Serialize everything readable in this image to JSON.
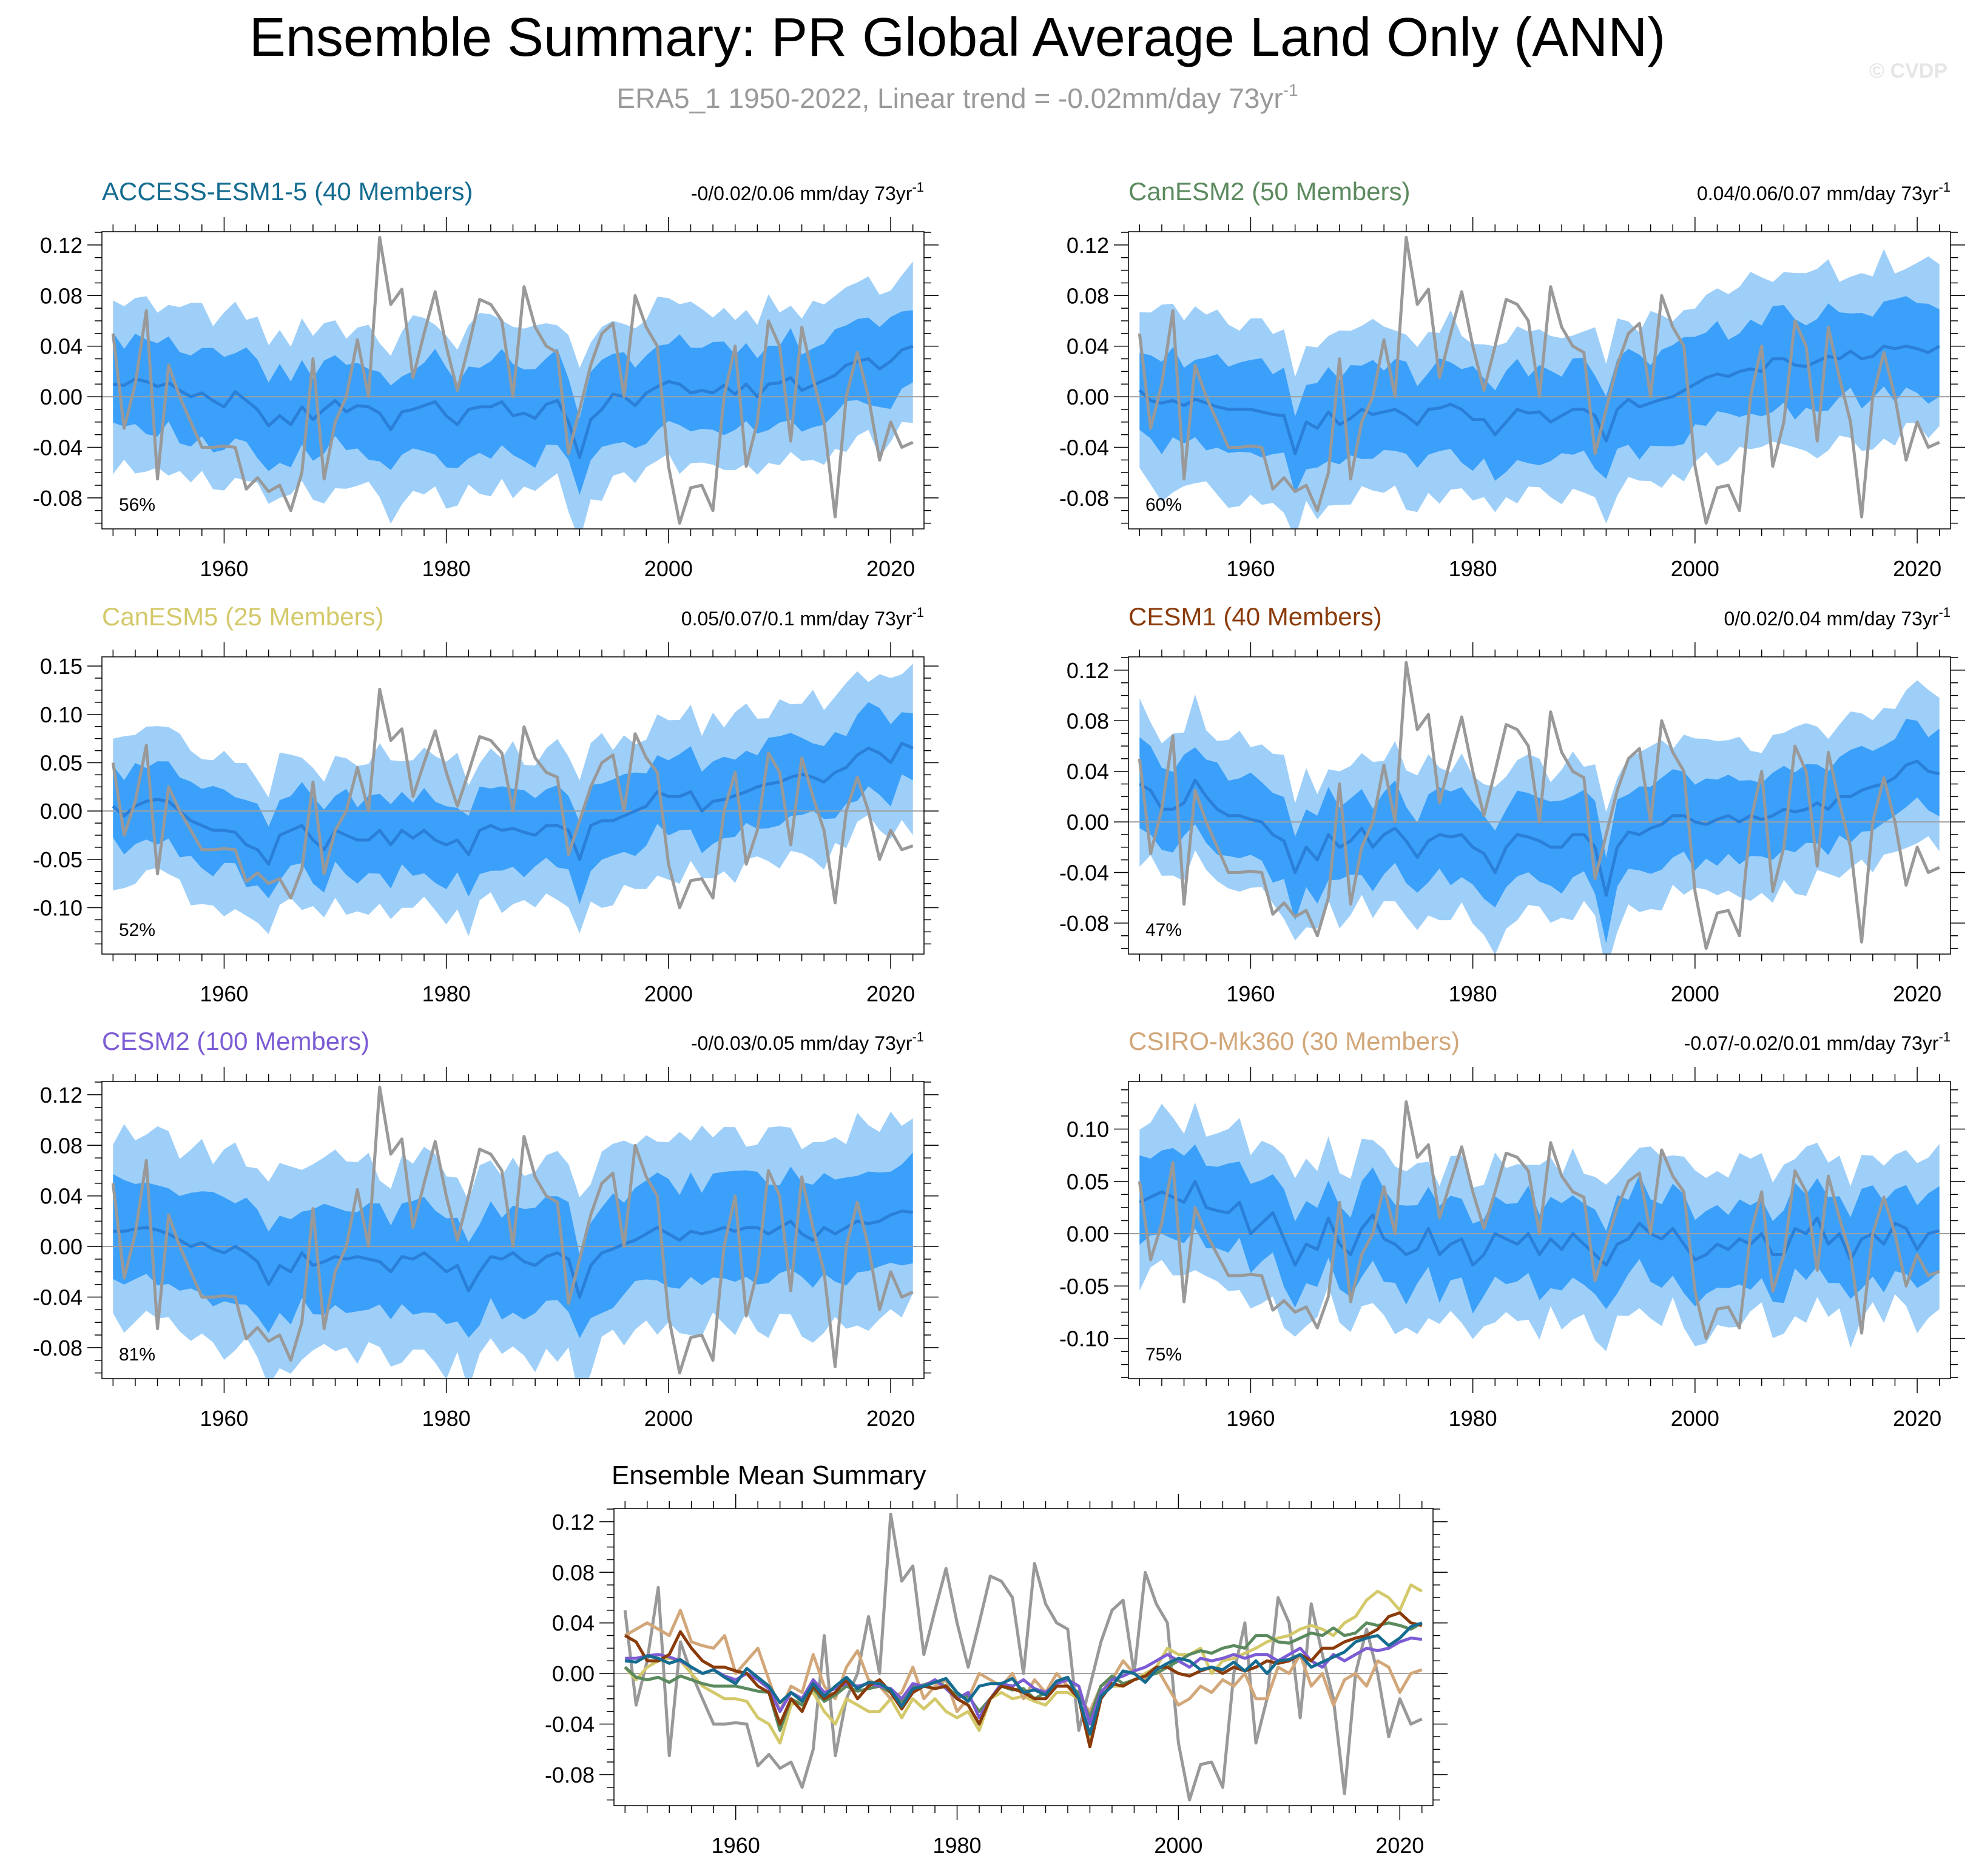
{
  "page": {
    "title": "Ensemble Summary: PR Global Average Land Only (ANN)",
    "subtitle_prefix": "ERA5_1 1950-2022, Linear trend = -0.02mm/day 73yr",
    "subtitle_sup": "-1",
    "watermark": "© CVDP"
  },
  "colors": {
    "obs": "#999999",
    "outer_band": "#9ecff9",
    "inner_band": "#3ba0f9",
    "ens_mean": "#2a7fd8",
    "zero_line": "#a0a0a0"
  },
  "x_ticks": [
    1960,
    1980,
    2000,
    2020
  ],
  "observations": {
    "name": "ERA5_1",
    "years": [
      1950,
      1951,
      1952,
      1953,
      1954,
      1955,
      1956,
      1957,
      1958,
      1959,
      1960,
      1961,
      1962,
      1963,
      1964,
      1965,
      1966,
      1967,
      1968,
      1969,
      1970,
      1971,
      1972,
      1973,
      1974,
      1975,
      1976,
      1977,
      1978,
      1979,
      1980,
      1981,
      1982,
      1983,
      1984,
      1985,
      1986,
      1987,
      1988,
      1989,
      1990,
      1991,
      1992,
      1993,
      1994,
      1995,
      1996,
      1997,
      1998,
      1999,
      2000,
      2001,
      2002,
      2003,
      2004,
      2005,
      2006,
      2007,
      2008,
      2009,
      2010,
      2011,
      2012,
      2013,
      2014,
      2015,
      2016,
      2017,
      2018,
      2019,
      2020,
      2021,
      2022
    ],
    "values": [
      0.05,
      -0.025,
      0.01,
      0.068,
      -0.065,
      0.025,
      0.0,
      -0.02,
      -0.04,
      -0.04,
      -0.039,
      -0.04,
      -0.073,
      -0.064,
      -0.075,
      -0.07,
      -0.09,
      -0.06,
      0.03,
      -0.065,
      -0.02,
      0.0,
      0.045,
      0.0,
      0.126,
      0.073,
      0.085,
      0.015,
      0.05,
      0.083,
      0.04,
      0.005,
      0.04,
      0.077,
      0.073,
      0.06,
      0.0,
      0.087,
      0.055,
      0.04,
      0.035,
      -0.045,
      -0.01,
      0.025,
      0.05,
      0.058,
      0.0,
      0.08,
      0.055,
      0.04,
      -0.055,
      -0.1,
      -0.072,
      -0.07,
      -0.09,
      0.0,
      0.04,
      -0.055,
      -0.02,
      0.06,
      0.04,
      -0.035,
      0.055,
      0.015,
      -0.02,
      -0.095,
      0.0,
      0.035,
      0.0,
      -0.05,
      -0.02,
      -0.04,
      -0.036
    ]
  },
  "panels": [
    {
      "label": "ACCESS-ESM1-5 (40 Members)",
      "color": "#156c90",
      "trend_prefix": "-0/0.02/0.06 mm/day 73yr",
      "trend_sup": "-1",
      "percent": "56%",
      "y_ticks": [
        0.12,
        0.08,
        0.04,
        0.0,
        -0.04,
        -0.08
      ],
      "y_tick_labels": [
        "0.12",
        "0.08",
        "0.04",
        "0.00",
        "-0.04",
        "-0.08"
      ],
      "y_range": [
        -0.1045,
        0.1305
      ],
      "start_year": 1950,
      "ens_mean": [
        0.01,
        0.009,
        0.014,
        0.012,
        0.008,
        0.011,
        0.005,
        0.0,
        0.003,
        -0.003,
        -0.008,
        0.004,
        -0.003,
        -0.01,
        -0.023,
        -0.015,
        -0.022,
        -0.008,
        -0.018,
        -0.01,
        -0.003,
        -0.012,
        -0.007,
        -0.008,
        -0.013,
        -0.026,
        -0.012,
        -0.01,
        -0.007,
        -0.004,
        -0.015,
        -0.022,
        -0.01,
        -0.008,
        -0.008,
        -0.004,
        -0.015,
        -0.013,
        -0.017,
        -0.006,
        -0.003,
        -0.02,
        -0.048,
        -0.018,
        -0.01,
        0.002,
        0.0,
        -0.007,
        0.003,
        0.008,
        0.012,
        0.01,
        0.003,
        0.005,
        0.003,
        0.009,
        0.002,
        0.01,
        0.0,
        0.01,
        0.011,
        0.015,
        0.005,
        0.009,
        0.013,
        0.017,
        0.025,
        0.028,
        0.03,
        0.022,
        0.028,
        0.037,
        0.04
      ],
      "spread_inner": 0.035,
      "spread_outer": 0.065
    },
    {
      "label": "CanESM2 (50 Members)",
      "color": "#5b8a5e",
      "trend_prefix": "0.04/0.06/0.07 mm/day 73yr",
      "trend_sup": "-1",
      "percent": "60%",
      "y_ticks": [
        0.12,
        0.08,
        0.04,
        0.0,
        -0.04,
        -0.08
      ],
      "y_tick_labels": [
        "0.12",
        "0.08",
        "0.04",
        "0.00",
        "-0.04",
        "-0.08"
      ],
      "y_range": [
        -0.1045,
        0.1305
      ],
      "start_year": 1950,
      "ens_mean": [
        0.005,
        -0.003,
        -0.005,
        -0.003,
        -0.007,
        -0.002,
        -0.005,
        -0.008,
        -0.01,
        -0.01,
        -0.01,
        -0.012,
        -0.014,
        -0.015,
        -0.045,
        -0.02,
        -0.025,
        -0.012,
        -0.022,
        -0.017,
        -0.01,
        -0.014,
        -0.012,
        -0.01,
        -0.015,
        -0.022,
        -0.01,
        -0.009,
        -0.006,
        -0.01,
        -0.018,
        -0.018,
        -0.03,
        -0.02,
        -0.01,
        -0.013,
        -0.012,
        -0.02,
        -0.015,
        -0.01,
        -0.01,
        -0.015,
        -0.035,
        -0.01,
        -0.002,
        -0.008,
        -0.005,
        -0.002,
        0.0,
        0.005,
        0.01,
        0.015,
        0.018,
        0.016,
        0.02,
        0.022,
        0.02,
        0.03,
        0.03,
        0.025,
        0.024,
        0.028,
        0.032,
        0.03,
        0.036,
        0.03,
        0.032,
        0.04,
        0.038,
        0.04,
        0.038,
        0.035,
        0.04
      ],
      "spread_inner": 0.036,
      "spread_outer": 0.068
    },
    {
      "label": "CanESM5 (25 Members)",
      "color": "#d4c96a",
      "trend_prefix": "0.05/0.07/0.1 mm/day 73yr",
      "trend_sup": "-1",
      "percent": "52%",
      "y_ticks": [
        0.15,
        0.1,
        0.05,
        0.0,
        -0.05,
        -0.1
      ],
      "y_tick_labels": [
        "0.15",
        "0.10",
        "0.05",
        "0.00",
        "-0.05",
        "-0.10"
      ],
      "y_range": [
        -0.148,
        0.1595
      ],
      "start_year": 1950,
      "ens_mean": [
        0.005,
        -0.005,
        0.005,
        0.01,
        0.012,
        0.01,
        0.0,
        -0.01,
        -0.015,
        -0.02,
        -0.02,
        -0.022,
        -0.035,
        -0.04,
        -0.055,
        -0.025,
        -0.02,
        -0.015,
        -0.03,
        -0.04,
        -0.02,
        -0.025,
        -0.03,
        -0.03,
        -0.02,
        -0.035,
        -0.02,
        -0.028,
        -0.02,
        -0.03,
        -0.035,
        -0.03,
        -0.045,
        -0.02,
        -0.015,
        -0.02,
        -0.018,
        -0.022,
        -0.025,
        -0.015,
        -0.015,
        -0.02,
        -0.05,
        -0.015,
        -0.01,
        -0.01,
        -0.005,
        0.0,
        0.005,
        0.02,
        0.015,
        0.015,
        0.02,
        0.0,
        0.01,
        0.012,
        0.016,
        0.02,
        0.025,
        0.028,
        0.03,
        0.035,
        0.038,
        0.035,
        0.03,
        0.04,
        0.045,
        0.058,
        0.065,
        0.06,
        0.05,
        0.07,
        0.065
      ],
      "spread_inner": 0.04,
      "spread_outer": 0.08
    },
    {
      "label": "CESM1 (40 Members)",
      "color": "#8a3b0a",
      "trend_prefix": "0/0.02/0.04 mm/day 73yr",
      "trend_sup": "-1",
      "percent": "47%",
      "y_ticks": [
        0.12,
        0.08,
        0.04,
        0.0,
        -0.04,
        -0.08
      ],
      "y_tick_labels": [
        "0.12",
        "0.08",
        "0.04",
        "0.00",
        "-0.04",
        "-0.08"
      ],
      "y_range": [
        -0.1045,
        0.1305
      ],
      "start_year": 1950,
      "ens_mean": [
        0.03,
        0.025,
        0.01,
        0.01,
        0.015,
        0.033,
        0.02,
        0.01,
        0.005,
        0.005,
        0.002,
        0.0,
        -0.01,
        -0.015,
        -0.04,
        -0.02,
        -0.03,
        -0.01,
        -0.02,
        -0.015,
        -0.005,
        -0.02,
        -0.01,
        -0.005,
        -0.015,
        -0.028,
        -0.015,
        -0.01,
        -0.012,
        -0.01,
        -0.02,
        -0.025,
        -0.04,
        -0.02,
        -0.01,
        -0.012,
        -0.015,
        -0.02,
        -0.02,
        -0.01,
        -0.01,
        -0.02,
        -0.058,
        -0.02,
        -0.008,
        -0.01,
        -0.005,
        -0.002,
        0.005,
        0.005,
        0.0,
        -0.002,
        0.002,
        0.005,
        0.0,
        0.005,
        0.002,
        0.005,
        0.01,
        0.008,
        0.01,
        0.015,
        0.01,
        0.02,
        0.02,
        0.025,
        0.028,
        0.03,
        0.035,
        0.045,
        0.048,
        0.04,
        0.038
      ],
      "spread_inner": 0.032,
      "spread_outer": 0.06
    },
    {
      "label": "CESM2 (100 Members)",
      "color": "#7c5cd4",
      "trend_prefix": "-0/0.03/0.05 mm/day 73yr",
      "trend_sup": "-1",
      "percent": "81%",
      "y_ticks": [
        0.12,
        0.08,
        0.04,
        0.0,
        -0.04,
        -0.08
      ],
      "y_tick_labels": [
        "0.12",
        "0.08",
        "0.04",
        "0.00",
        "-0.04",
        "-0.08"
      ],
      "y_range": [
        -0.1045,
        0.1305
      ],
      "start_year": 1950,
      "ens_mean": [
        0.012,
        0.012,
        0.014,
        0.015,
        0.013,
        0.01,
        0.005,
        0.0,
        0.003,
        -0.002,
        -0.005,
        0.0,
        -0.005,
        -0.012,
        -0.03,
        -0.015,
        -0.02,
        -0.005,
        -0.015,
        -0.012,
        -0.008,
        -0.01,
        -0.008,
        -0.01,
        -0.012,
        -0.02,
        -0.008,
        -0.01,
        -0.005,
        -0.012,
        -0.02,
        -0.015,
        -0.035,
        -0.02,
        -0.008,
        -0.01,
        -0.005,
        -0.012,
        -0.015,
        -0.008,
        -0.005,
        -0.01,
        -0.04,
        -0.015,
        -0.005,
        -0.002,
        0.002,
        0.005,
        0.01,
        0.015,
        0.01,
        0.005,
        0.012,
        0.01,
        0.012,
        0.015,
        0.012,
        0.015,
        0.015,
        0.01,
        0.015,
        0.02,
        0.01,
        0.005,
        0.015,
        0.01,
        0.015,
        0.02,
        0.018,
        0.02,
        0.025,
        0.028,
        0.027
      ],
      "spread_inner": 0.04,
      "spread_outer": 0.075
    },
    {
      "label": "CSIRO-Mk360 (30 Members)",
      "color": "#d2a77a",
      "trend_prefix": "-0.07/-0.02/0.01 mm/day 73yr",
      "trend_sup": "-1",
      "percent": "75%",
      "y_ticks": [
        0.1,
        0.05,
        0.0,
        -0.05,
        -0.1
      ],
      "y_tick_labels": [
        "0.10",
        "0.05",
        "0.00",
        "-0.05",
        "-0.10"
      ],
      "y_range": [
        -0.1385,
        0.1455
      ],
      "start_year": 1950,
      "ens_mean": [
        0.03,
        0.035,
        0.04,
        0.035,
        0.03,
        0.05,
        0.025,
        0.022,
        0.02,
        0.03,
        0.0,
        0.01,
        0.02,
        -0.005,
        -0.03,
        -0.01,
        -0.015,
        0.015,
        -0.01,
        -0.02,
        0.005,
        0.018,
        -0.005,
        -0.01,
        -0.02,
        -0.015,
        0.005,
        -0.02,
        -0.01,
        -0.005,
        -0.03,
        -0.02,
        0.0,
        -0.005,
        -0.01,
        0.0,
        -0.02,
        -0.005,
        -0.015,
        0.0,
        -0.01,
        -0.02,
        -0.03,
        -0.01,
        -0.005,
        0.01,
        0.0,
        -0.005,
        0.005,
        -0.01,
        -0.025,
        -0.02,
        -0.01,
        -0.015,
        -0.005,
        -0.01,
        0.0,
        -0.02,
        -0.02,
        0.005,
        0.0,
        0.015,
        -0.01,
        0.0,
        -0.025,
        -0.005,
        0.0,
        -0.01,
        0.01,
        0.005,
        -0.015,
        0.0,
        0.003
      ],
      "spread_inner": 0.04,
      "spread_outer": 0.075
    }
  ],
  "summary": {
    "title": "Ensemble Mean Summary",
    "y_ticks": [
      0.12,
      0.08,
      0.04,
      0.0,
      -0.04,
      -0.08
    ],
    "y_tick_labels": [
      "0.12",
      "0.08",
      "0.04",
      "0.00",
      "-0.04",
      "-0.08"
    ],
    "y_range": [
      -0.1045,
      0.1305
    ]
  },
  "chart_data": {
    "type": "line",
    "title": "Ensemble Summary: PR Global Average Land Only (ANN)",
    "subtitle": "ERA5_1 1950-2022, Linear trend = -0.02mm/day 73yr-1",
    "xlabel": "",
    "ylabel": "",
    "xlim": [
      1949,
      2023
    ],
    "x_ticks": [
      1960,
      1980,
      2000,
      2020
    ],
    "description": "Six model ensembles each with ensemble mean (dark blue line), 25-75% (dark band) and 10-90% (light band) spread, and ERA5_1 observations (grey line); final panel overlays all ensemble means plus observations."
  }
}
